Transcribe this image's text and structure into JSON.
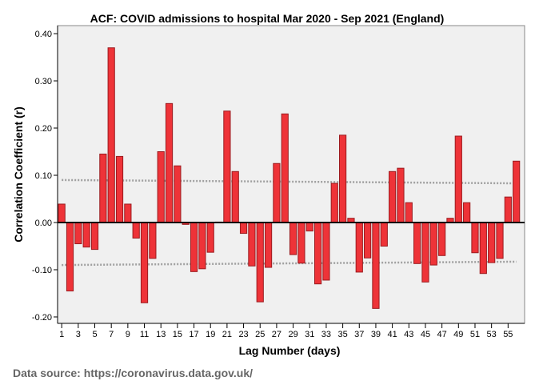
{
  "chart_data": {
    "type": "bar",
    "title": "ACF: COVID admissions to hospital Mar 2020 - Sep 2021 (England)",
    "xlabel": "Lag Number (days)",
    "ylabel": "Correlation Coefficient (r)",
    "ylim": [
      -0.2136,
      0.417
    ],
    "xlim": [
      0.5,
      57
    ],
    "yticks": [
      "-0.20",
      "-0.10",
      "0.00",
      "0.10",
      "0.20",
      "0.30",
      "0.40"
    ],
    "ytick_values": [
      -0.2,
      -0.1,
      0,
      0.1,
      0.2,
      0.3,
      0.4
    ],
    "xticks": [
      1,
      3,
      5,
      7,
      9,
      11,
      13,
      15,
      17,
      19,
      21,
      23,
      25,
      27,
      29,
      31,
      33,
      35,
      37,
      39,
      41,
      43,
      45,
      47,
      49,
      51,
      53,
      55
    ],
    "lags": [
      1,
      2,
      3,
      4,
      5,
      6,
      7,
      8,
      9,
      10,
      11,
      12,
      13,
      14,
      15,
      16,
      17,
      18,
      19,
      20,
      21,
      22,
      23,
      24,
      25,
      26,
      27,
      28,
      29,
      30,
      31,
      32,
      33,
      34,
      35,
      36,
      37,
      38,
      39,
      40,
      41,
      42,
      43,
      44,
      45,
      46,
      47,
      48,
      49,
      50,
      51,
      52,
      53,
      54,
      55,
      56
    ],
    "values": [
      0.039,
      -0.145,
      -0.045,
      -0.052,
      -0.057,
      0.145,
      0.37,
      0.14,
      0.039,
      -0.033,
      -0.17,
      -0.076,
      0.15,
      0.252,
      0.12,
      -0.004,
      -0.104,
      -0.098,
      -0.063,
      0.001,
      0.236,
      0.108,
      -0.023,
      -0.092,
      -0.168,
      -0.095,
      0.125,
      0.23,
      -0.068,
      -0.086,
      -0.018,
      -0.13,
      -0.122,
      0.083,
      0.185,
      0.009,
      -0.105,
      -0.075,
      -0.182,
      -0.05,
      0.108,
      0.115,
      0.042,
      -0.087,
      -0.126,
      -0.09,
      -0.07,
      0.009,
      0.183,
      0.042,
      -0.064,
      -0.108,
      -0.085,
      -0.076,
      0.054,
      0.13
    ],
    "confidence_upper": [
      0.09,
      0.083
    ],
    "confidence_lower": [
      -0.09,
      -0.083
    ],
    "grid": false,
    "colors": {
      "bar": "#ee3338",
      "bar_edge": "#9b1b1f",
      "plot_bg": "#f0f0f0",
      "conf_line": "#a0a0a0"
    }
  },
  "source": "Data source: https://coronavirus.data.gov.uk/"
}
